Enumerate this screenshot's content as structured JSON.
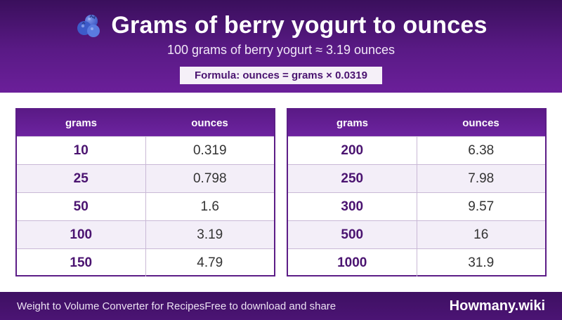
{
  "header": {
    "title": "Grams of berry yogurt to ounces",
    "subtitle": "100 grams of berry yogurt ≈ 3.19 ounces",
    "formula": "Formula: ounces = grams × 0.0319",
    "icon": "blueberry-icon"
  },
  "tables": {
    "headers": {
      "grams": "grams",
      "ounces": "ounces"
    },
    "left": [
      {
        "grams": "10",
        "ounces": "0.319"
      },
      {
        "grams": "25",
        "ounces": "0.798"
      },
      {
        "grams": "50",
        "ounces": "1.6"
      },
      {
        "grams": "100",
        "ounces": "3.19"
      },
      {
        "grams": "150",
        "ounces": "4.79"
      }
    ],
    "right": [
      {
        "grams": "200",
        "ounces": "6.38"
      },
      {
        "grams": "250",
        "ounces": "7.98"
      },
      {
        "grams": "300",
        "ounces": "9.57"
      },
      {
        "grams": "500",
        "ounces": "16"
      },
      {
        "grams": "1000",
        "ounces": "31.9"
      }
    ]
  },
  "footer": {
    "left_text": "Weight to Volume Converter for RecipesFree to download and share",
    "brand": "Howmany.wiki"
  },
  "colors": {
    "header_purple": "#5a1a86",
    "accent_text": "#4a1370",
    "alt_row": "#f3eef8"
  }
}
